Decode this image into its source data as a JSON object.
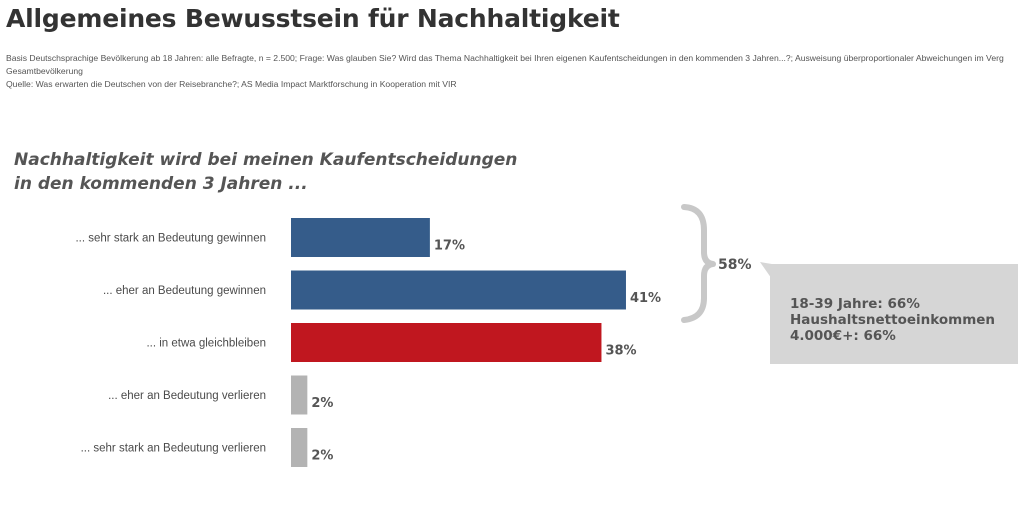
{
  "page": {
    "title": "Allgemeines Bewusstsein für Nachhaltigkeit",
    "basis_line1": "Basis Deutschsprachige Bevölkerung ab 18 Jahren: alle Befragte, n = 2.500; Frage: Was glauben Sie? Wird das Thema Nachhaltigkeit bei Ihren eigenen Kaufentscheidungen in den kommenden 3 Jahren...?; Ausweisung überproportionaler Abweichungen im Verg",
    "basis_line2": "Gesamtbevölkerung",
    "source": "Quelle: Was erwarten die Deutschen von der Reisebranche?; AS Media Impact Marktforschung in Kooperation mit VIR"
  },
  "question": {
    "line1": "Nachhaltigkeit wird bei meinen Kaufentscheidungen",
    "line2": "in den kommenden 3 Jahren ..."
  },
  "callout": {
    "line1": "18-39 Jahre: 66%",
    "line2": "Haushaltsnettoeinkommen",
    "line3": "4.000€+: 66%"
  },
  "chart_data": {
    "type": "bar",
    "orientation": "horizontal",
    "categories": [
      "... sehr stark an Bedeutung gewinnen",
      "... eher an Bedeutung gewinnen",
      "... in etwa gleichbleiben",
      "... eher an Bedeutung verlieren",
      "... sehr stark an Bedeutung verlieren"
    ],
    "values": [
      17,
      41,
      38,
      2,
      2
    ],
    "value_labels": [
      "17%",
      "41%",
      "38%",
      "2%",
      "2%"
    ],
    "colors": [
      "#355c8a",
      "#355c8a",
      "#c0171f",
      "#b3b3b3",
      "#b3b3b3"
    ],
    "bracket_total_label": "58%",
    "xlim": [
      0,
      100
    ],
    "grid": false
  }
}
